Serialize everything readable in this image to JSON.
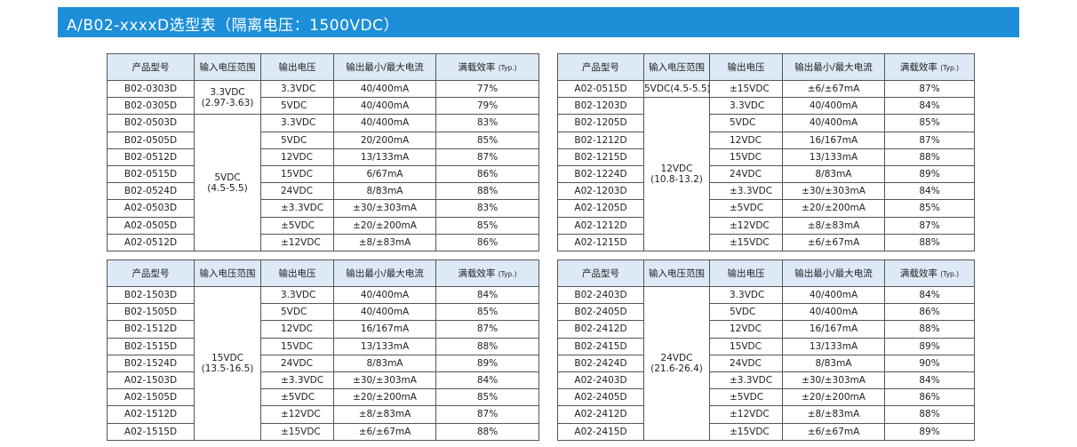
{
  "title": "A/B02-xxxxD选型表（隔离电压：1500VDC）",
  "tables": [
    {
      "header": [
        "产品型号",
        "输入电压范围",
        "输出电压",
        "输出最小/最大电流",
        "满载效率",
        "(Typ.)"
      ],
      "rows": [
        [
          "B02-0303D",
          [
            "3.3VDC",
            "(2.97-3.63)"
          ],
          "3.3VDC",
          "40/400mA",
          "77%"
        ],
        [
          "B02-0305D",
          null,
          "5VDC",
          "40/400mA",
          "79%"
        ],
        [
          "B02-0503D",
          [
            "5VDC",
            "(4.5-5.5)"
          ],
          "3.3VDC",
          "40/400mA",
          "83%"
        ],
        [
          "B02-0505D",
          null,
          "5VDC",
          "20/200mA",
          "85%"
        ],
        [
          "B02-0512D",
          null,
          "12VDC",
          "13/133mA",
          "87%"
        ],
        [
          "B02-0515D",
          null,
          "15VDC",
          "6/67mA",
          "86%"
        ],
        [
          "B02-0524D",
          null,
          "24VDC",
          "8/83mA",
          "88%"
        ],
        [
          "A02-0503D",
          null,
          "±3.3VDC",
          "±30/±303mA",
          "83%"
        ],
        [
          "A02-0505D",
          null,
          "±5VDC",
          "±20/±200mA",
          "85%"
        ],
        [
          "A02-0512D",
          null,
          "±12VDC",
          "±8/±83mA",
          "86%"
        ]
      ]
    },
    {
      "header": [
        "产品型号",
        "输入电压范围",
        "输出电压",
        "输出最小/最大电流",
        "满载效率",
        "(Typ.)"
      ],
      "rows": [
        [
          "A02-0515D",
          [
            "5VDC(4.5-5.5)"
          ],
          "±15VDC",
          "±6/±67mA",
          "87%"
        ],
        [
          "B02-1203D",
          [
            "12VDC",
            "(10.8-13.2)"
          ],
          "3.3VDC",
          "40/400mA",
          "84%"
        ],
        [
          "B02-1205D",
          null,
          "5VDC",
          "40/400mA",
          "85%"
        ],
        [
          "B02-1212D",
          null,
          "12VDC",
          "16/167mA",
          "87%"
        ],
        [
          "B02-1215D",
          null,
          "15VDC",
          "13/133mA",
          "88%"
        ],
        [
          "B02-1224D",
          null,
          "24VDC",
          "8/83mA",
          "89%"
        ],
        [
          "A02-1203D",
          null,
          "±3.3VDC",
          "±30/±303mA",
          "84%"
        ],
        [
          "A02-1205D",
          null,
          "±5VDC",
          "±20/±200mA",
          "85%"
        ],
        [
          "A02-1212D",
          null,
          "±12VDC",
          "±8/±83mA",
          "87%"
        ],
        [
          "A02-1215D",
          null,
          "±15VDC",
          "±6/±67mA",
          "88%"
        ]
      ]
    },
    {
      "header": [
        "产品型号",
        "输入电压范围",
        "输出电压",
        "输出最小/最大电流",
        "满载效率",
        "(Typ.)"
      ],
      "rows": [
        [
          "B02-1503D",
          [
            "15VDC",
            "(13.5-16.5)"
          ],
          "3.3VDC",
          "40/400mA",
          "84%"
        ],
        [
          "B02-1505D",
          null,
          "5VDC",
          "40/400mA",
          "85%"
        ],
        [
          "B02-1512D",
          null,
          "12VDC",
          "16/167mA",
          "87%"
        ],
        [
          "B02-1515D",
          null,
          "15VDC",
          "13/133mA",
          "88%"
        ],
        [
          "B02-1524D",
          null,
          "24VDC",
          "8/83mA",
          "89%"
        ],
        [
          "A02-1503D",
          null,
          "±3.3VDC",
          "±30/±303mA",
          "84%"
        ],
        [
          "A02-1505D",
          null,
          "±5VDC",
          "±20/±200mA",
          "85%"
        ],
        [
          "A02-1512D",
          null,
          "±12VDC",
          "±8/±83mA",
          "87%"
        ],
        [
          "A02-1515D",
          null,
          "±15VDC",
          "±6/±67mA",
          "88%"
        ]
      ]
    },
    {
      "header": [
        "产品型号",
        "输入电压范围",
        "输出电压",
        "输出最小/最大电流",
        "满载效率",
        "(Typ.)"
      ],
      "rows": [
        [
          "B02-2403D",
          [
            "24VDC",
            "(21.6-26.4)"
          ],
          "3.3VDC",
          "40/400mA",
          "84%"
        ],
        [
          "B02-2405D",
          null,
          "5VDC",
          "40/400mA",
          "86%"
        ],
        [
          "B02-2412D",
          null,
          "12VDC",
          "16/167mA",
          "88%"
        ],
        [
          "B02-2415D",
          null,
          "15VDC",
          "13/133mA",
          "89%"
        ],
        [
          "B02-2424D",
          null,
          "24VDC",
          "8/83mA",
          "90%"
        ],
        [
          "A02-2403D",
          null,
          "±3.3VDC",
          "±30/±303mA",
          "84%"
        ],
        [
          "A02-2405D",
          null,
          "±5VDC",
          "±20/±200mA",
          "86%"
        ],
        [
          "A02-2412D",
          null,
          "±12VDC",
          "±8/±83mA",
          "88%"
        ],
        [
          "A02-2415D",
          null,
          "±15VDC",
          "±6/±67mA",
          "89%"
        ]
      ]
    }
  ]
}
